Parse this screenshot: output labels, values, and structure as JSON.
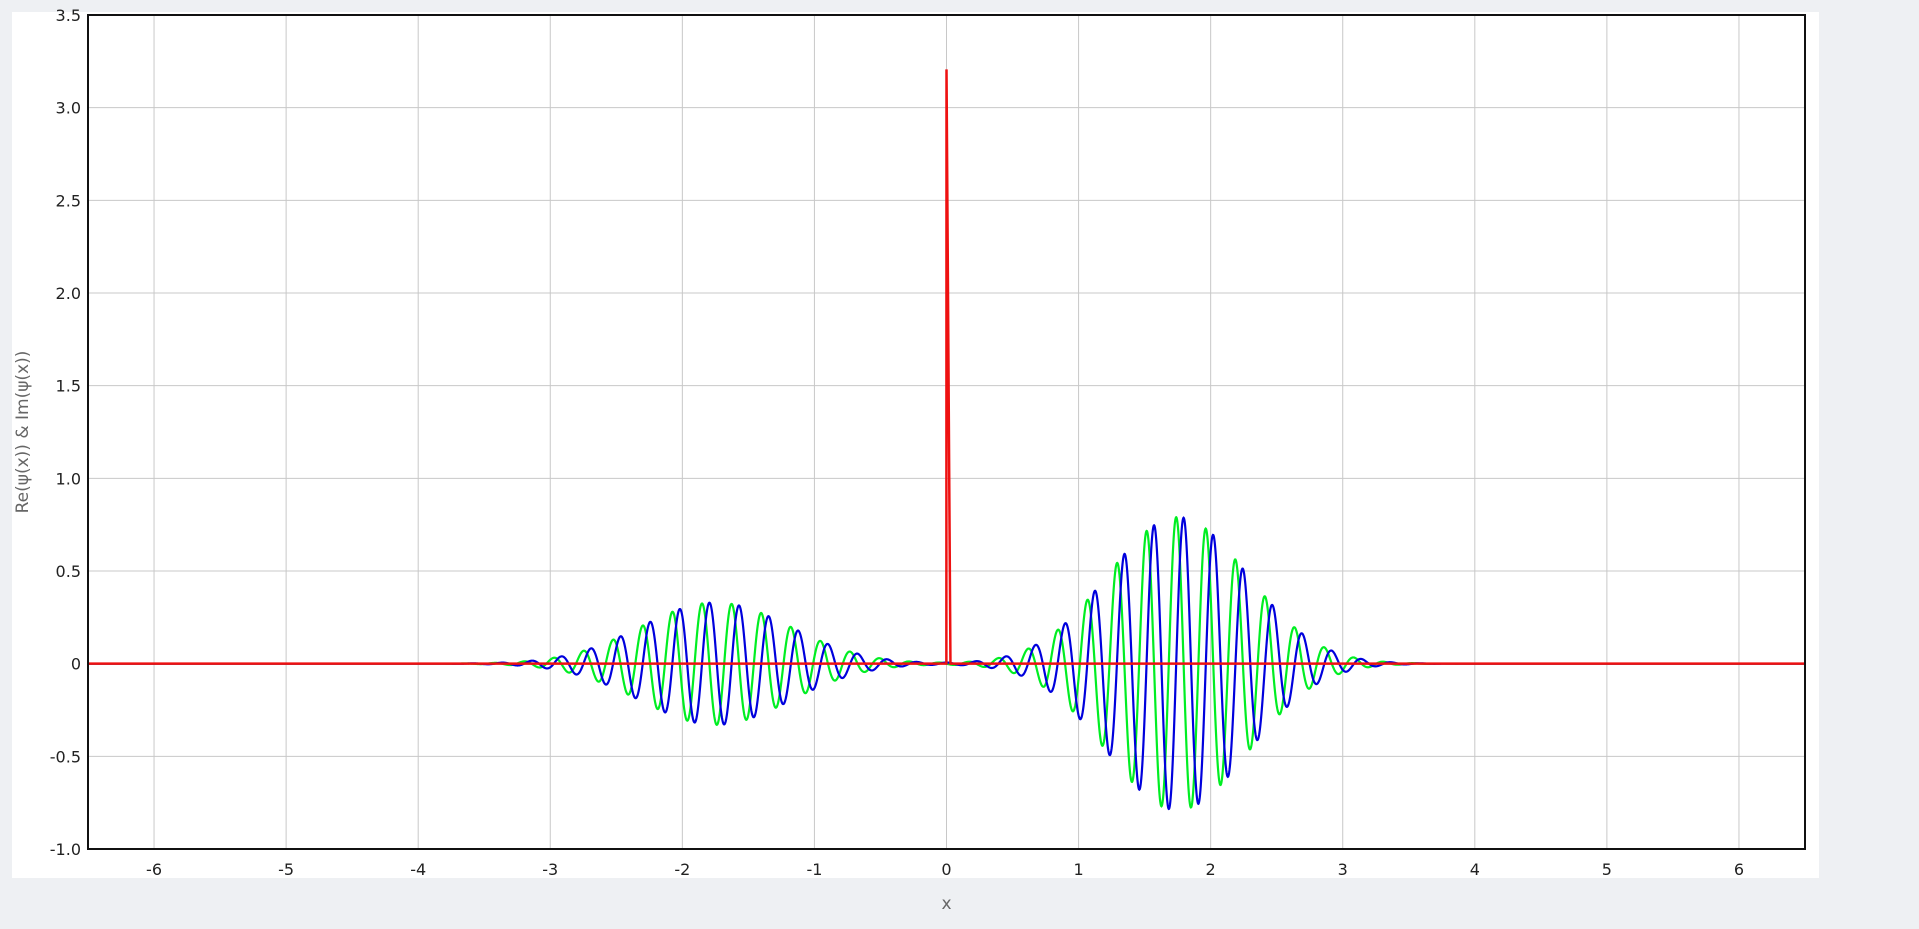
{
  "colors": {
    "grid": "#c8c8c8",
    "frame": "#111111",
    "real": "#0000dd",
    "imag": "#00ee22",
    "potential": "#ee1111"
  },
  "chart_data": {
    "type": "line",
    "xlabel": "x",
    "ylabel": "Re(ψ(x)) & Im(ψ(x))",
    "xlim": [
      -6.5,
      6.5
    ],
    "ylim": [
      -1.0,
      3.5
    ],
    "x_ticks": [
      -6,
      -5,
      -4,
      -3,
      -2,
      -1,
      0,
      1,
      2,
      3,
      4,
      5,
      6
    ],
    "x_tick_labels": [
      "-6",
      "-5",
      "-4",
      "-3",
      "-2",
      "-1",
      "0",
      "1",
      "2",
      "3",
      "4",
      "5",
      "6"
    ],
    "y_ticks": [
      -1.0,
      -0.5,
      0,
      0.5,
      1.0,
      1.5,
      2.0,
      2.5,
      3.0,
      3.5
    ],
    "y_tick_labels": [
      "-1.0",
      "-0.5",
      "0",
      "0.5",
      "1.0",
      "1.5",
      "2.0",
      "2.5",
      "3.0",
      "3.5"
    ],
    "grid": true,
    "series": [
      {
        "color": "#0000dd",
        "description_data": "oscillating real part: transmitted packet amplitude ~0.79 centred near x=1.75, reflected packet amplitude ~0.33 centred near x=-1.75, wavenumber ~28",
        "packets": [
          {
            "center": 1.75,
            "amplitude": 0.79,
            "width": 0.75
          },
          {
            "center": -1.75,
            "amplitude": 0.33,
            "width": 0.8
          }
        ],
        "wavenumber": 28,
        "phase": 0
      },
      {
        "color": "#00ee22",
        "packets": [
          {
            "center": 1.75,
            "amplitude": 0.79,
            "width": 0.75
          },
          {
            "center": -1.75,
            "amplitude": 0.33,
            "width": 0.8
          }
        ],
        "wavenumber": 28,
        "phase": 1.5708
      },
      {
        "color": "#ee1111",
        "x": [
          -6.5,
          -0.001,
          0,
          0.0001,
          0.03,
          6.5
        ],
        "y": [
          0,
          0,
          3.2,
          3.2,
          0,
          0
        ]
      }
    ]
  }
}
